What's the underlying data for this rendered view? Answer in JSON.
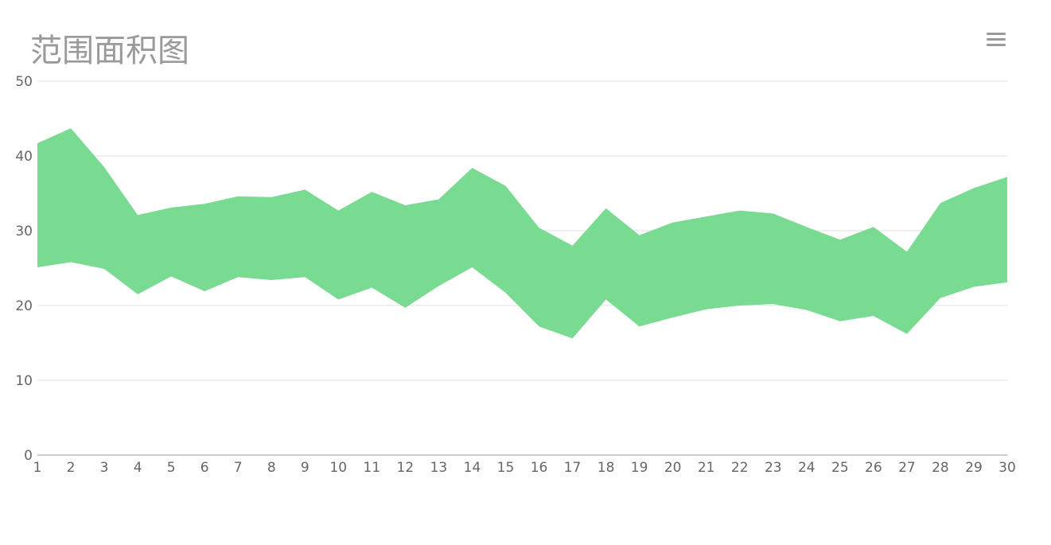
{
  "chart_data": {
    "type": "area",
    "variant": "range",
    "title": "范围面积图",
    "categories": [
      "1",
      "2",
      "3",
      "4",
      "5",
      "6",
      "7",
      "8",
      "9",
      "10",
      "11",
      "12",
      "13",
      "14",
      "15",
      "16",
      "17",
      "18",
      "19",
      "20",
      "21",
      "22",
      "23",
      "24",
      "25",
      "26",
      "27",
      "28",
      "29",
      "30"
    ],
    "series": [
      {
        "low": [
          25.1,
          25.8,
          24.9,
          21.5,
          23.9,
          21.9,
          23.8,
          23.4,
          23.8,
          20.8,
          22.4,
          19.7,
          22.6,
          25.1,
          21.7,
          17.2,
          15.6,
          20.8,
          17.2,
          18.4,
          19.5,
          20.0,
          20.2,
          19.4,
          17.9,
          18.6,
          16.2,
          21.0,
          22.5,
          23.1
        ],
        "high": [
          41.7,
          43.7,
          38.5,
          32.1,
          33.1,
          33.6,
          34.6,
          34.5,
          35.5,
          32.7,
          35.2,
          33.4,
          34.2,
          38.4,
          36.0,
          30.4,
          28.0,
          33.0,
          29.4,
          31.1,
          31.9,
          32.7,
          32.3,
          30.5,
          28.8,
          30.5,
          27.2,
          33.7,
          35.7,
          37.2
        ]
      }
    ],
    "ylim": [
      0,
      50
    ],
    "yticks": [
      0,
      10,
      20,
      30,
      40,
      50
    ],
    "grid": true,
    "legend": "none",
    "colors": {
      "area": "#79db91",
      "grid": "#e0e0e0",
      "axis": "#999999"
    }
  },
  "toolbar": {
    "menu_icon": "hamburger-menu-icon"
  }
}
